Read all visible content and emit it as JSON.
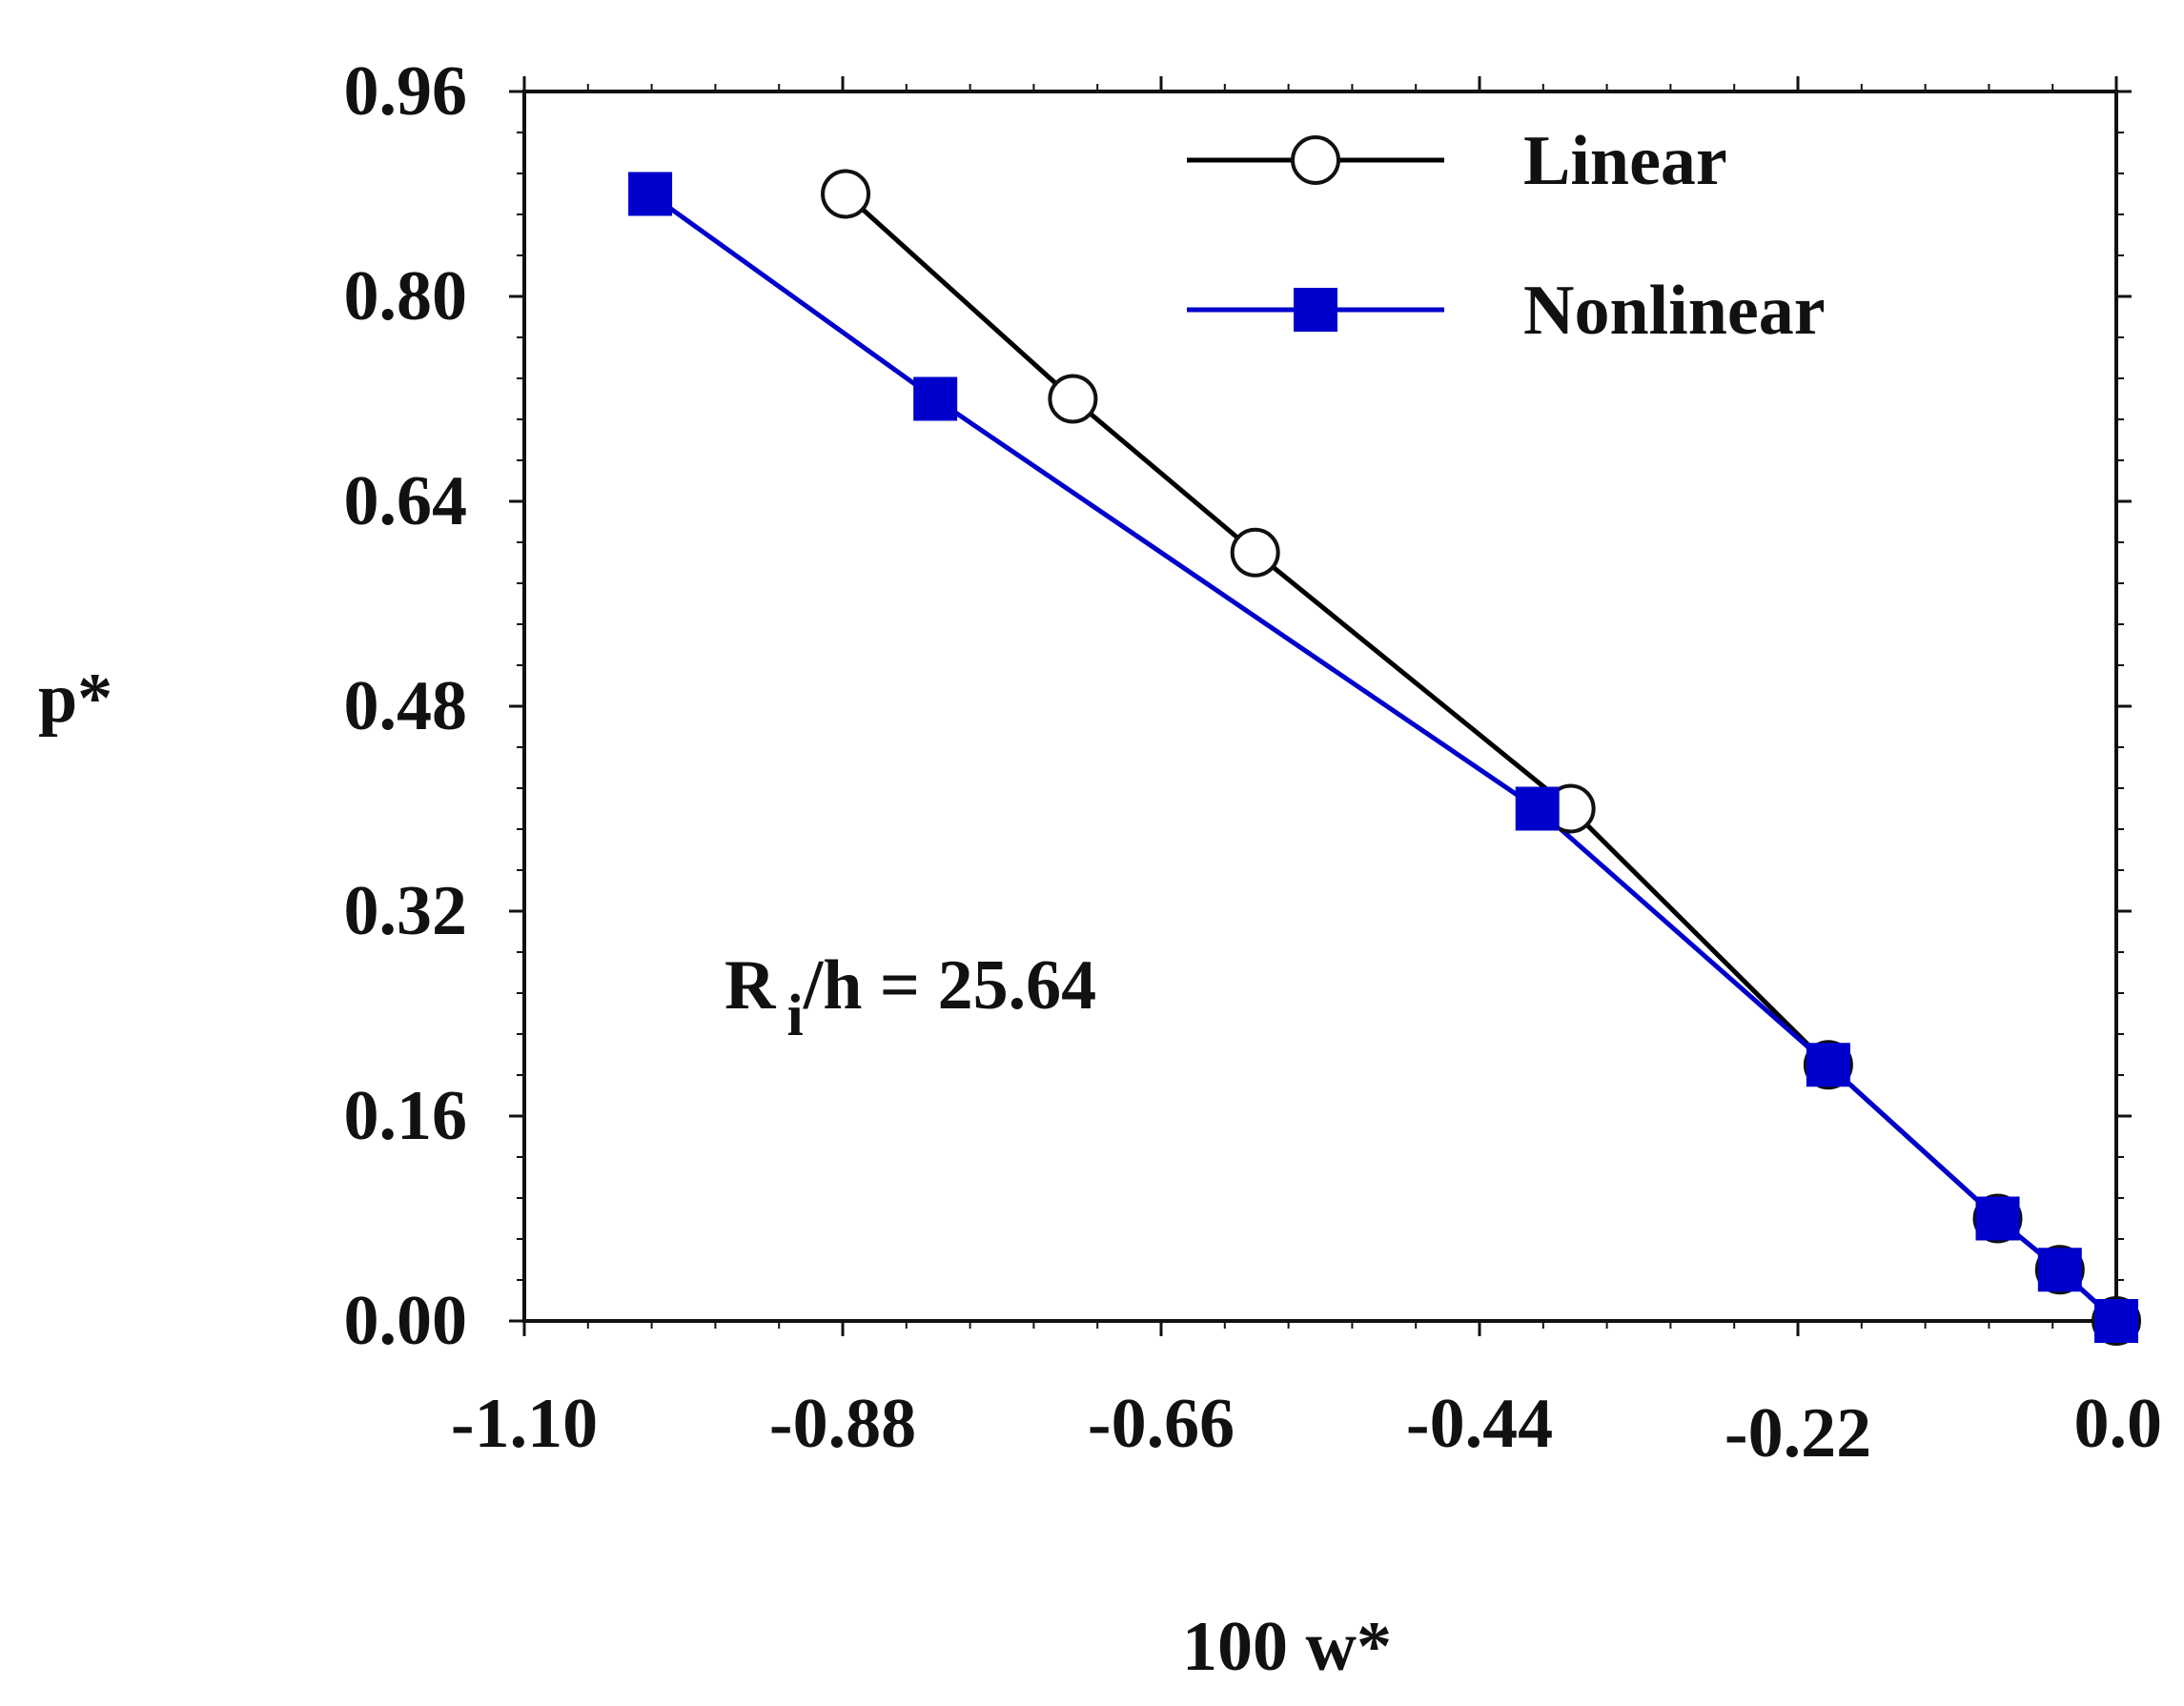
{
  "chart_data": {
    "type": "line",
    "title": "",
    "xlabel": "100 w*",
    "ylabel": "p*",
    "xlim": [
      -1.1,
      0.0
    ],
    "ylim": [
      0.0,
      0.96
    ],
    "xticks": [
      "-1.10",
      "-0.88",
      "-0.66",
      "-0.44",
      "-0.22",
      "0.0"
    ],
    "yticks": [
      "0.00",
      "0.16",
      "0.32",
      "0.48",
      "0.64",
      "0.80",
      "0.96"
    ],
    "grid": false,
    "legend_position": "top-right",
    "annotation": {
      "main": "R",
      "sub": "i",
      "rest": "/h = 25.64"
    },
    "series": [
      {
        "name": "Linear",
        "color": "#000000",
        "marker": "open-circle",
        "x": [
          -0.878,
          -0.721,
          -0.595,
          -0.377,
          -0.199,
          -0.082,
          -0.039,
          0.0
        ],
        "y": [
          0.88,
          0.72,
          0.6,
          0.4,
          0.2,
          0.08,
          0.04,
          0.0
        ]
      },
      {
        "name": "Nonlinear",
        "color": "#0000cc",
        "marker": "filled-square",
        "x": [
          -1.013,
          -0.816,
          -0.4,
          -0.199,
          -0.082,
          -0.039,
          0.0
        ],
        "y": [
          0.88,
          0.72,
          0.4,
          0.2,
          0.08,
          0.04,
          0.0
        ]
      }
    ]
  }
}
